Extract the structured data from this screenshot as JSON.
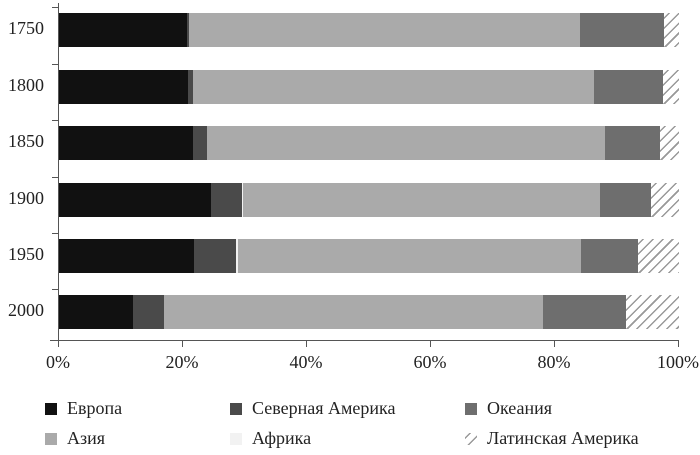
{
  "chart_data": {
    "type": "bar",
    "orientation": "horizontal",
    "stacked": true,
    "normalized": true,
    "title": "",
    "xlabel": "",
    "ylabel": "",
    "xlim": [
      0,
      100
    ],
    "x_ticks": [
      "0%",
      "20%",
      "40%",
      "60%",
      "80%",
      "100%"
    ],
    "categories": [
      "1750",
      "1800",
      "1850",
      "1900",
      "1950",
      "2000"
    ],
    "series": [
      {
        "name": "Европа",
        "color": "#111111",
        "values": [
          20.6,
          20.8,
          21.6,
          24.5,
          21.8,
          12.0
        ]
      },
      {
        "name": "Северная Америка",
        "color": "#4a4a4a",
        "values": [
          0.3,
          0.8,
          2.3,
          5.0,
          6.8,
          5.0
        ]
      },
      {
        "name": "Африка",
        "color": "#f2f2f2",
        "values": [
          0.0,
          0.0,
          0.0,
          0.2,
          0.3,
          0.0
        ]
      },
      {
        "name": "Азия",
        "color": "#aaaaaa",
        "values": [
          63.2,
          64.7,
          64.2,
          57.6,
          55.3,
          61.1
        ]
      },
      {
        "name": "Океания",
        "color": "#6e6e6e",
        "values": [
          13.5,
          11.1,
          8.9,
          8.2,
          9.2,
          13.4
        ]
      },
      {
        "name": "Латинская Америка",
        "color": "hatch",
        "values": [
          2.4,
          2.6,
          3.0,
          4.5,
          6.6,
          8.5
        ]
      }
    ],
    "legend": {
      "position": "bottom",
      "entries": [
        {
          "label": "Европа",
          "color": "#111111"
        },
        {
          "label": "Северная Америка",
          "color": "#4a4a4a"
        },
        {
          "label": "Океания",
          "color": "#6e6e6e"
        },
        {
          "label": "Азия",
          "color": "#aaaaaa"
        },
        {
          "label": "Африка",
          "color": "#f2f2f2"
        },
        {
          "label": "Латинская Америка",
          "color": "hatch"
        }
      ]
    },
    "grid": false
  }
}
